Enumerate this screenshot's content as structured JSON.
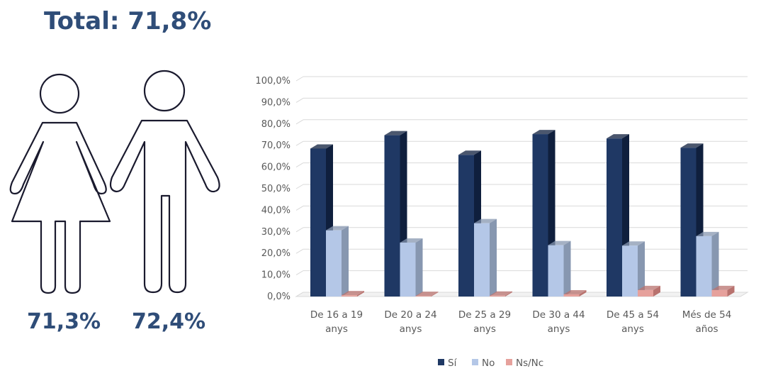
{
  "header": {
    "total": "Total: 71,8%"
  },
  "gender": {
    "female_value": "71,3%",
    "male_value": "72,4%"
  },
  "colors": {
    "si": "#1f3864",
    "no": "#b4c7e7",
    "nsnc": "#e6a19c",
    "figure_outline": "#1a1a2e",
    "title": "#2f4d78"
  },
  "chart_data": {
    "type": "bar",
    "categories": [
      [
        "De 16 a 19",
        "anys"
      ],
      [
        "De 20 a 24",
        "anys"
      ],
      [
        "De 25 a 29",
        "anys"
      ],
      [
        "De 30 a 44",
        "anys"
      ],
      [
        "De 45 a 54",
        "anys"
      ],
      [
        "Més de 54",
        "años"
      ]
    ],
    "series": [
      {
        "name": "Sí",
        "values": [
          68.6,
          74.8,
          65.7,
          75.3,
          73.3,
          69.0
        ]
      },
      {
        "name": "No",
        "values": [
          30.7,
          25.0,
          34.0,
          23.8,
          23.6,
          28.0
        ]
      },
      {
        "name": "Ns/Nc",
        "values": [
          0.6,
          0.3,
          0.4,
          1.0,
          3.0,
          3.0
        ]
      }
    ],
    "yticks": [
      "0,0%",
      "10,0%",
      "20,0%",
      "30,0%",
      "40,0%",
      "50,0%",
      "60,0%",
      "70,0%",
      "80,0%",
      "90,0%",
      "100,0%"
    ],
    "ylim": [
      0,
      100
    ],
    "grid": true,
    "legend_position": "bottom"
  }
}
